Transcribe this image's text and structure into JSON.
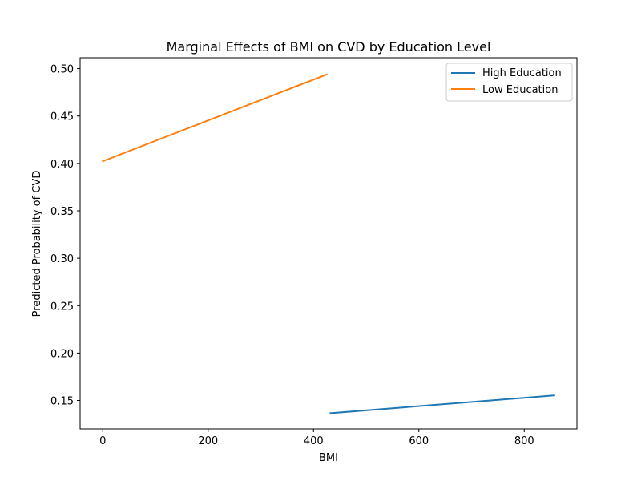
{
  "chart_data": {
    "type": "line",
    "title": "Marginal Effects of BMI on CVD by Education Level",
    "xlabel": "BMI",
    "ylabel": "Predicted Probability of CVD",
    "xlim": [
      -43,
      900
    ],
    "ylim": [
      0.12,
      0.5115
    ],
    "xticks": [
      0,
      200,
      400,
      600,
      800
    ],
    "yticks": [
      0.15,
      0.2,
      0.25,
      0.3,
      0.35,
      0.4,
      0.45,
      0.5
    ],
    "grid": false,
    "legend_position": "top-right",
    "series": [
      {
        "name": "High Education",
        "color": "#1f77b4",
        "x": [
          432,
          857
        ],
        "y": [
          0.1366,
          0.1553
        ]
      },
      {
        "name": "Low Education",
        "color": "#ff7f0e",
        "x": [
          0,
          425
        ],
        "y": [
          0.4023,
          0.4938
        ]
      }
    ]
  }
}
